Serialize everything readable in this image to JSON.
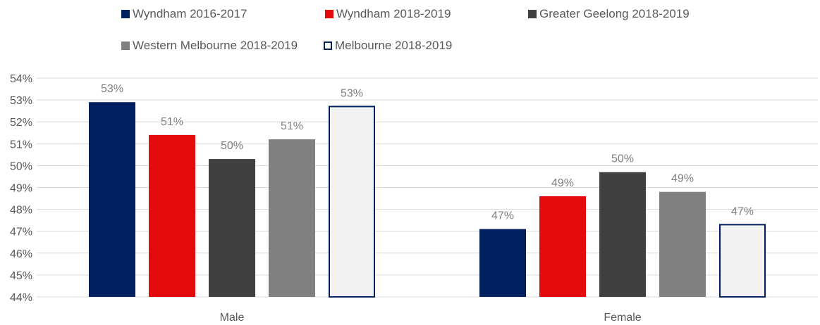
{
  "chart_data": {
    "type": "bar",
    "categories": [
      "Male",
      "Female"
    ],
    "series": [
      {
        "name": "Wyndham 2016-2017",
        "values": [
          52.9,
          47.1
        ],
        "labels": [
          "53%",
          "47%"
        ],
        "color": "#002060",
        "border": "#002060"
      },
      {
        "name": "Wyndham 2018-2019",
        "values": [
          51.4,
          48.6
        ],
        "labels": [
          "51%",
          "49%"
        ],
        "color": "#e30b0b",
        "border": "#e30b0b"
      },
      {
        "name": "Greater Geelong 2018-2019",
        "values": [
          50.3,
          49.7
        ],
        "labels": [
          "50%",
          "50%"
        ],
        "color": "#404040",
        "border": "#404040"
      },
      {
        "name": "Western Melbourne 2018-2019",
        "values": [
          51.2,
          48.8
        ],
        "labels": [
          "51%",
          "49%"
        ],
        "color": "#808080",
        "border": "#808080"
      },
      {
        "name": "Melbourne 2018-2019",
        "values": [
          52.7,
          47.3
        ],
        "labels": [
          "53%",
          "47%"
        ],
        "color": "#f2f2f2",
        "border": "#002060"
      }
    ],
    "yticks": [
      "44%",
      "45%",
      "46%",
      "47%",
      "48%",
      "49%",
      "50%",
      "51%",
      "52%",
      "53%",
      "54%"
    ],
    "ylim": [
      44,
      54
    ],
    "grid": true,
    "legend": "top"
  }
}
